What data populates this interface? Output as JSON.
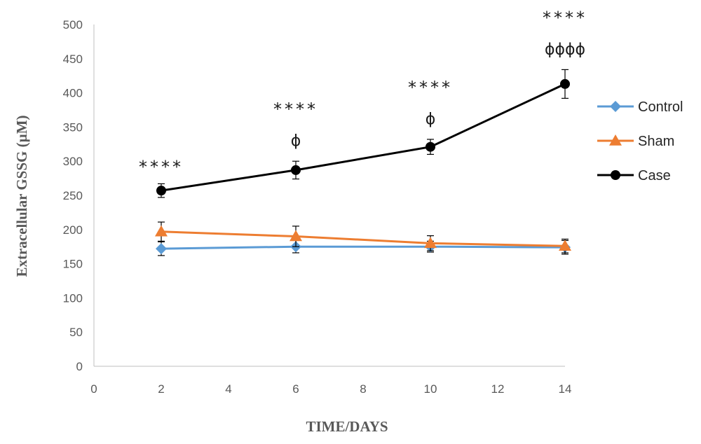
{
  "chart_data": {
    "type": "line",
    "xlabel": "TIME/DAYS",
    "ylabel": "Extracellular GSSG (µM)",
    "xlim": [
      0,
      14
    ],
    "ylim": [
      0,
      500
    ],
    "xticks": [
      "0",
      "2",
      "4",
      "6",
      "8",
      "10",
      "12",
      "14"
    ],
    "yticks": [
      "0",
      "50",
      "100",
      "150",
      "200",
      "250",
      "300",
      "350",
      "400",
      "450",
      "500"
    ],
    "grid": false,
    "legend_position": "right",
    "x": [
      2,
      6,
      10,
      14
    ],
    "series": [
      {
        "name": "Control",
        "color": "#5b9bd5",
        "marker": "diamond",
        "values": [
          172,
          175,
          175,
          174
        ],
        "errors": [
          10,
          9,
          8,
          10
        ]
      },
      {
        "name": "Sham",
        "color": "#ed7d31",
        "marker": "triangle",
        "values": [
          197,
          190,
          180,
          176
        ],
        "errors": [
          14,
          15,
          11,
          10
        ]
      },
      {
        "name": "Case",
        "color": "#000000",
        "marker": "circle",
        "values": [
          257,
          287,
          321,
          413
        ],
        "errors": [
          10,
          13,
          11,
          21
        ]
      }
    ],
    "annotations": [
      {
        "x": 2,
        "lines": [
          "****"
        ]
      },
      {
        "x": 6,
        "lines": [
          "****",
          "ϕ"
        ]
      },
      {
        "x": 10,
        "lines": [
          "****",
          "ϕ"
        ]
      },
      {
        "x": 14,
        "lines": [
          "****",
          "ϕϕϕϕ"
        ]
      }
    ]
  }
}
